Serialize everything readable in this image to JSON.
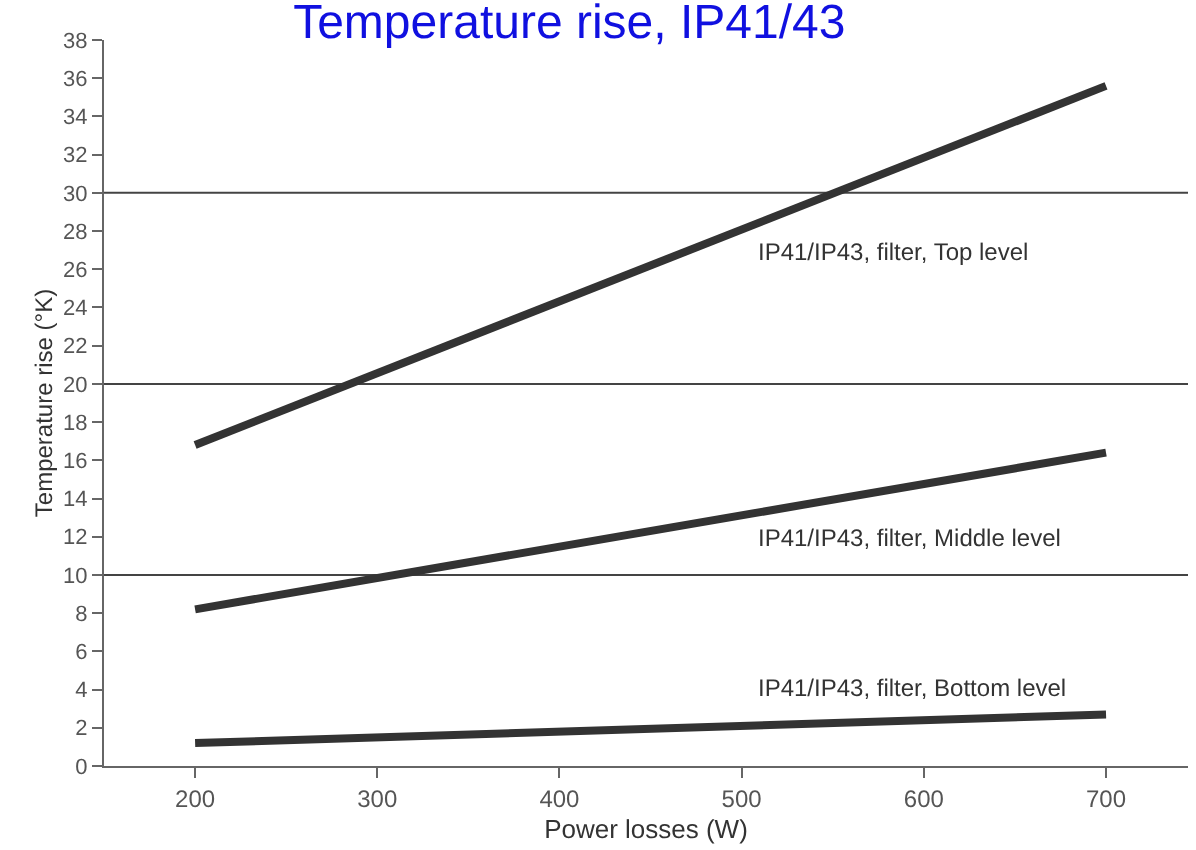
{
  "chart_data": {
    "type": "line",
    "title": "Temperature rise, IP41/43",
    "xlabel": "Power losses (W)",
    "ylabel": "Temperature rise (°K)",
    "x": [
      200,
      700
    ],
    "series": [
      {
        "color": "#333333",
        "values": [
          16.8,
          35.6
        ]
      },
      {
        "color": "#333333",
        "values": [
          8.2,
          16.4
        ]
      },
      {
        "color": "#333333",
        "values": [
          1.2,
          2.7
        ]
      }
    ],
    "xlim": [
      150,
      745
    ],
    "ylim": [
      0,
      38
    ],
    "xticks": [
      200,
      300,
      400,
      500,
      600,
      700
    ],
    "yticks": [
      0,
      2,
      4,
      6,
      8,
      10,
      12,
      14,
      16,
      18,
      20,
      22,
      24,
      26,
      28,
      30,
      32,
      34,
      36,
      38
    ],
    "ref_lines": [
      {
        "axis": "y",
        "value": 10,
        "color": "#444444"
      },
      {
        "axis": "y",
        "value": 20,
        "color": "#444444"
      },
      {
        "axis": "y",
        "value": 30,
        "color": "#444444"
      }
    ],
    "annotations": [
      "IP41/IP43, filter, Top level",
      "IP41/IP43, filter, Middle level",
      "IP41/IP43, filter, Bottom level"
    ],
    "grid": false,
    "marker": "none",
    "line_style": "solid"
  }
}
